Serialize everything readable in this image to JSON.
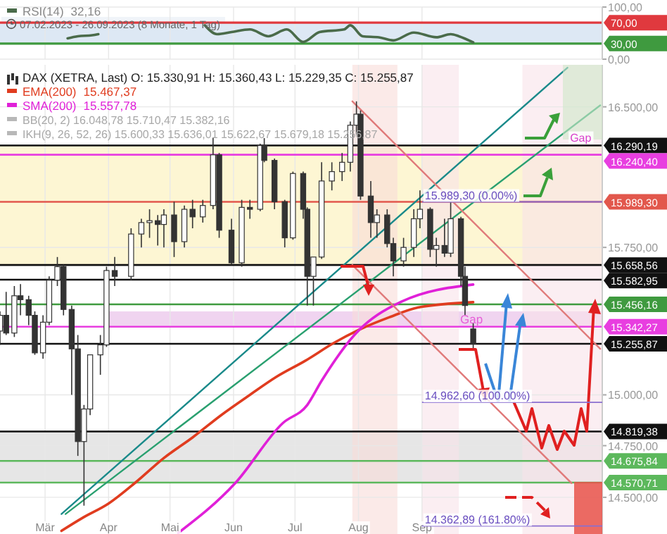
{
  "chart_data": [
    {
      "type": "line",
      "xlim": [
        "2023-02-07",
        "2023-11-28"
      ],
      "ylim": [
        0,
        100
      ],
      "yticks": [
        {
          "value": 100,
          "label": "100,00"
        },
        {
          "value": 0,
          "label": "0,00"
        }
      ],
      "xticks": [
        {
          "value": "2023-03-01",
          "label": null
        },
        {
          "value": "2023-04-01",
          "label": null
        },
        {
          "value": "2023-05-01",
          "label": null
        },
        {
          "value": "2023-06-01",
          "label": null
        },
        {
          "value": "2023-07-01",
          "label": null
        },
        {
          "value": "2023-08-01",
          "label": null
        },
        {
          "value": "2023-09-01",
          "label": null
        }
      ],
      "tick_labels": "y",
      "grid": true,
      "legend": "top left",
      "series": [
        {
          "name": "RSI(14)",
          "color": "#4a6b4a",
          "x": [
            "2023-03-12",
            "2023-03-17",
            "2023-03-24",
            "2023-03-27",
            "2023-04-20",
            "2023-05-18",
            "2023-05-24",
            "2023-05-31",
            "2023-06-09",
            "2023-06-18",
            "2023-06-27",
            "2023-07-05",
            "2023-07-13",
            "2023-07-25",
            "2023-07-28",
            "2023-08-03",
            "2023-08-11",
            "2023-08-18",
            "2023-08-28",
            "2023-09-08",
            "2023-09-15",
            "2023-09-19",
            "2023-09-26"
          ],
          "values": [
            40,
            44,
            46,
            48,
            null,
            65,
            48,
            52,
            57,
            44,
            57,
            33,
            52,
            57,
            65,
            44,
            42,
            36,
            51,
            42,
            48,
            44,
            32.16
          ]
        }
      ],
      "bands": [
        {
          "axis": "y",
          "from": 30,
          "to": 70,
          "color": "#dde8f4"
        }
      ],
      "ref_lines": [
        {
          "axis": "y",
          "value": 70,
          "label": "70,00",
          "color": "#e0393e"
        },
        {
          "axis": "y",
          "value": 30,
          "label": "30,00",
          "color": "#3f9a3f"
        }
      ],
      "annotations": [
        "32,16",
        "07.02.2023 - 26.09.2023  (8 Monate, 1 Tag)"
      ]
    },
    {
      "type": "candlestick",
      "title": "DAX (XETRA, Last)  O: 15.330,91  H: 15.360,43  L: 15.229,35  C: 15.255,87",
      "log": true,
      "xlim": [
        "2023-02-07",
        "2023-11-28"
      ],
      "ylim": [
        14325,
        16731
      ],
      "xticks": [
        {
          "value": "2023-03-01",
          "label": "Mär"
        },
        {
          "value": "2023-04-01",
          "label": "Apr"
        },
        {
          "value": "2023-05-01",
          "label": "Mai"
        },
        {
          "value": "2023-06-01",
          "label": "Jun"
        },
        {
          "value": "2023-07-01",
          "label": "Jul"
        },
        {
          "value": "2023-08-01",
          "label": "Aug"
        },
        {
          "value": "2023-09-01",
          "label": "Sep"
        }
      ],
      "yticks": [
        {
          "value": 16500,
          "label": "16.500,00"
        },
        {
          "value": 15750,
          "label": "15.750,00"
        },
        {
          "value": 15000,
          "label": "15.000,00"
        },
        {
          "value": 14750,
          "label": "14.750,00"
        },
        {
          "value": 14500,
          "label": "14.500,00"
        }
      ],
      "grid": true,
      "legend": "top left",
      "color": "#333333",
      "x": [
        "2023-02-07",
        "2023-02-10",
        "2023-02-14",
        "2023-02-17",
        "2023-02-21",
        "2023-02-24",
        "2023-02-28",
        "2023-03-03",
        "2023-03-07",
        "2023-03-10",
        "2023-03-14",
        "2023-03-17",
        "2023-03-20",
        "2023-03-23",
        "2023-03-28",
        "2023-03-31",
        "2023-04-04",
        "2023-04-12",
        "2023-04-17",
        "2023-04-21",
        "2023-04-25",
        "2023-04-28",
        "2023-05-03",
        "2023-05-08",
        "2023-05-12",
        "2023-05-17",
        "2023-05-22",
        "2023-05-25",
        "2023-05-31",
        "2023-06-05",
        "2023-06-09",
        "2023-06-14",
        "2023-06-16",
        "2023-06-21",
        "2023-06-26",
        "2023-06-30",
        "2023-07-05",
        "2023-07-07",
        "2023-07-10",
        "2023-07-14",
        "2023-07-19",
        "2023-07-24",
        "2023-07-28",
        "2023-07-31",
        "2023-08-02",
        "2023-08-07",
        "2023-08-10",
        "2023-08-15",
        "2023-08-18",
        "2023-08-23",
        "2023-08-28",
        "2023-08-31",
        "2023-09-05",
        "2023-09-08",
        "2023-09-12",
        "2023-09-15",
        "2023-09-20",
        "2023-09-22",
        "2023-09-26"
      ],
      "ohlc": [
        [
          15320,
          15420,
          15250,
          15400
        ],
        [
          15400,
          15520,
          15300,
          15310
        ],
        [
          15310,
          15550,
          15290,
          15500
        ],
        [
          15500,
          15560,
          15400,
          15480
        ],
        [
          15480,
          15500,
          15350,
          15400
        ],
        [
          15400,
          15420,
          15200,
          15210
        ],
        [
          15210,
          15400,
          15180,
          15365
        ],
        [
          15365,
          15600,
          15350,
          15580
        ],
        [
          15580,
          15700,
          15550,
          15650
        ],
        [
          15650,
          15660,
          15400,
          15430
        ],
        [
          15430,
          15450,
          15000,
          15230
        ],
        [
          15230,
          15300,
          14700,
          14770
        ],
        [
          14770,
          14950,
          14460,
          14930
        ],
        [
          14930,
          15200,
          14900,
          15200
        ],
        [
          15200,
          15300,
          15100,
          15250
        ],
        [
          15250,
          15650,
          15240,
          15630
        ],
        [
          15630,
          15700,
          15550,
          15600
        ],
        [
          15600,
          15850,
          15580,
          15820
        ],
        [
          15820,
          15900,
          15750,
          15880
        ],
        [
          15880,
          15950,
          15800,
          15890
        ],
        [
          15890,
          15920,
          15760,
          15870
        ],
        [
          15870,
          15950,
          15750,
          15920
        ],
        [
          15920,
          15990,
          15700,
          15780
        ],
        [
          15780,
          15970,
          15750,
          15950
        ],
        [
          15950,
          16000,
          15850,
          15910
        ],
        [
          15910,
          16000,
          15880,
          15970
        ],
        [
          15970,
          16330,
          15950,
          16240
        ],
        [
          16240,
          16250,
          15800,
          15840
        ],
        [
          15840,
          15900,
          15660,
          15670
        ],
        [
          15670,
          16000,
          15650,
          15960
        ],
        [
          15960,
          16000,
          15900,
          15950
        ],
        [
          15950,
          16300,
          15940,
          16290
        ],
        [
          16290,
          16330,
          16200,
          16210
        ],
        [
          16210,
          16220,
          15950,
          15990
        ],
        [
          15990,
          16000,
          15750,
          15800
        ],
        [
          15800,
          16150,
          15790,
          16140
        ],
        [
          16140,
          16150,
          15900,
          15950
        ],
        [
          15950,
          15960,
          15450,
          15600
        ],
        [
          15600,
          15700,
          15450,
          15700
        ],
        [
          15700,
          16200,
          15690,
          16100
        ],
        [
          16100,
          16200,
          16050,
          16150
        ],
        [
          16150,
          16250,
          16100,
          16200
        ],
        [
          16200,
          16420,
          16150,
          16400
        ],
        [
          16400,
          16530,
          16350,
          16460
        ],
        [
          16460,
          16480,
          16000,
          16020
        ],
        [
          16020,
          16100,
          15800,
          15880
        ],
        [
          15880,
          15950,
          15800,
          15920
        ],
        [
          15920,
          15950,
          15750,
          15770
        ],
        [
          15770,
          15800,
          15600,
          15680
        ],
        [
          15680,
          15800,
          15650,
          15750
        ],
        [
          15750,
          15950,
          15700,
          15900
        ],
        [
          15900,
          16050,
          15850,
          15950
        ],
        [
          15950,
          15960,
          15700,
          15740
        ],
        [
          15740,
          15800,
          15650,
          15760
        ],
        [
          15760,
          15900,
          15700,
          15720
        ],
        [
          15720,
          15990,
          15700,
          15900
        ],
        [
          15900,
          15910,
          15550,
          15600
        ],
        [
          15600,
          15650,
          15400,
          15450
        ],
        [
          15330.91,
          15360.43,
          15229.35,
          15255.87
        ]
      ],
      "series": [
        {
          "name": "EMA(200)",
          "type": "line",
          "color": "#e03c1f",
          "x": [
            "2023-03-09",
            "2023-03-19",
            "2023-04-01",
            "2023-04-14",
            "2023-04-28",
            "2023-05-12",
            "2023-05-26",
            "2023-06-09",
            "2023-06-22",
            "2023-07-06",
            "2023-07-20",
            "2023-08-02",
            "2023-08-16",
            "2023-08-30",
            "2023-09-26"
          ],
          "values": [
            14340,
            14400,
            14470,
            14570,
            14690,
            14790,
            14900,
            15000,
            15090,
            15170,
            15260,
            15330,
            15390,
            15440,
            15467.37
          ]
        },
        {
          "name": "SMA(200)",
          "type": "line",
          "color": "#e020d8",
          "x": [
            "2023-05-05",
            "2023-06-02",
            "2023-06-25",
            "2023-07-07",
            "2023-07-14",
            "2023-07-30",
            "2023-08-22",
            "2023-09-26"
          ],
          "values": [
            14330,
            14570,
            14860,
            14950,
            15070,
            15300,
            15470,
            15557.78
          ]
        },
        {
          "type": "line",
          "color": "#1a8a8a",
          "x": [
            "2023-03-09",
            "2023-11-11"
          ],
          "values": [
            14420,
            16715
          ]
        },
        {
          "type": "line",
          "color": "#2aa070",
          "x": [
            "2023-03-11",
            "2023-11-27"
          ],
          "values": [
            14420,
            16508
          ]
        },
        {
          "type": "line",
          "color": "#e07a7a",
          "x": [
            "2023-07-29",
            "2023-11-27"
          ],
          "values": [
            16530,
            15230
          ]
        },
        {
          "type": "line",
          "color": "#e07a7a",
          "x": [
            "2023-07-29",
            "2023-11-13"
          ],
          "values": [
            15659,
            14568
          ]
        }
      ],
      "bands": [
        {
          "axis": "y",
          "from": 15658.56,
          "to": 16290.19,
          "color": "#fdf6d3"
        },
        {
          "axis": "y",
          "from": 14570.71,
          "to": 14819.38,
          "color": "#e6e6e6"
        },
        {
          "axis": "y",
          "from": 15342.27,
          "to": 15420,
          "label": "Gap",
          "color": "#f0d4f0"
        },
        {
          "axis": "x",
          "from": "2023-07-29",
          "to": "2023-08-20",
          "color": "#f8dcd8"
        },
        {
          "axis": "x",
          "from": "2023-09-01",
          "to": "2023-09-19",
          "color": "#f9e3ea"
        },
        {
          "axis": "x",
          "from": "2023-10-20",
          "to": "2023-11-28",
          "color": "#f9e3ea"
        }
      ],
      "ref_lines": [
        {
          "axis": "y",
          "value": 16290.19,
          "label": "16.290,19",
          "color": "#111111"
        },
        {
          "axis": "y",
          "value": 16240.4,
          "label": "16.240,40",
          "color": "#e83ee0"
        },
        {
          "axis": "y",
          "value": 15989.3,
          "label": "15.989,30",
          "color": "#e2574c"
        },
        {
          "axis": "y",
          "value": 15658.56,
          "label": "15.658,56",
          "color": "#111111"
        },
        {
          "axis": "y",
          "value": 15582.95,
          "label": "15.582,95",
          "color": "#111111"
        },
        {
          "axis": "y",
          "value": 15456.16,
          "label": "15.456,16",
          "color": "#3f9a3f"
        },
        {
          "axis": "y",
          "value": 15342.27,
          "label": "15.342,27",
          "color": "#e83ee0"
        },
        {
          "axis": "y",
          "value": 15255.87,
          "label": "15.255,87",
          "color": "#111111"
        },
        {
          "axis": "y",
          "value": 14819.38,
          "label": "14.819,38",
          "color": "#111111"
        },
        {
          "axis": "y",
          "value": 14675.84,
          "label": "14.675,84",
          "color": "#5cb85c"
        },
        {
          "axis": "y",
          "value": 14570.71,
          "label": "14.570,71",
          "color": "#5cb85c"
        }
      ],
      "annotations": [
        "15.467,37",
        "15.557,78",
        "BB(20, 2)  16.048,78  15.710,47  15.382,16",
        "IKH(9, 26, 52, 26)  15.600,33  15.636,01  15.622,67  15.679,18  15.256,87",
        {
          "text": "Gap",
          "x": "2023-11-15",
          "y": 16290.19
        },
        {
          "text": "15.989,30 (0.00%)",
          "x": "2023-09-01",
          "y": 15989.3
        },
        {
          "text": "14.962,60 (100.00%)",
          "x": "2023-09-01",
          "y": 14962.6
        },
        {
          "text": "14.362,89 (161.80%)",
          "x": "2023-09-01",
          "y": 14362.89
        }
      ]
    }
  ]
}
